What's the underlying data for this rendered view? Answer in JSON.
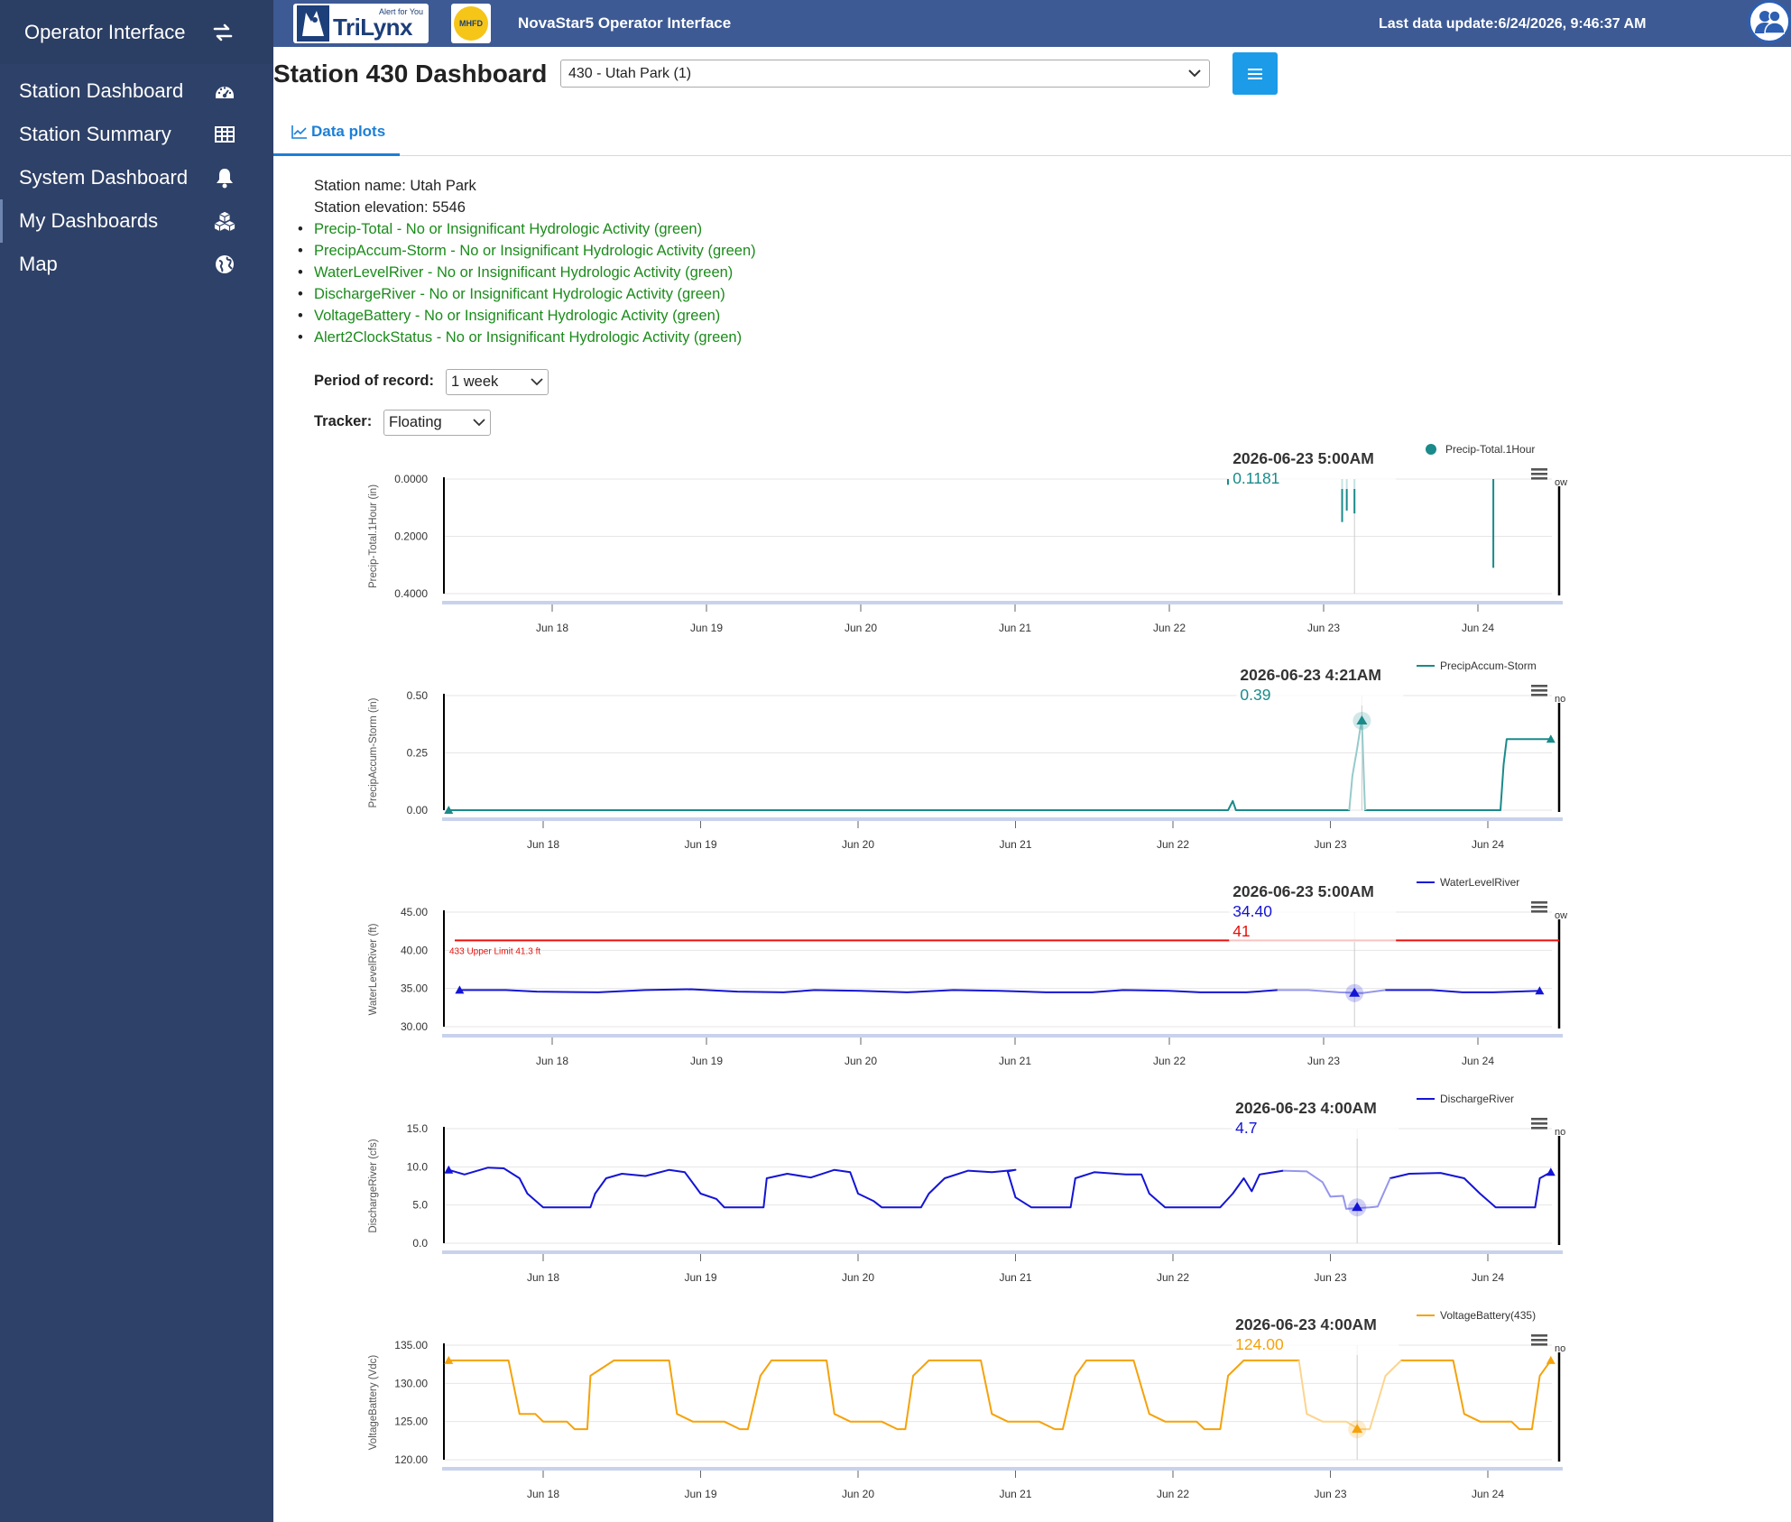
{
  "sidebar": {
    "brand": "Operator Interface",
    "items": [
      {
        "label": "Station Dashboard"
      },
      {
        "label": "Station Summary"
      },
      {
        "label": "System Dashboard"
      },
      {
        "label": "My Dashboards"
      },
      {
        "label": "Map"
      }
    ]
  },
  "topbar": {
    "logo_text": "TriLynx",
    "logo_tagline": "Alert for You",
    "logo2_text": "MHFD",
    "app_title": "NovaStar5 Operator Interface",
    "last_update": "Last data update:6/24/2026, 9:46:37 AM"
  },
  "header": {
    "title": "Station 430 Dashboard",
    "station_select": "430 - Utah Park (1)"
  },
  "tabs": [
    {
      "label": "Data plots"
    }
  ],
  "station": {
    "name_line": "Station name: Utah Park",
    "elevation_line": "Station elevation: 5546",
    "status": [
      "Precip-Total - No or Insignificant Hydrologic Activity (green)",
      "PrecipAccum-Storm - No or Insignificant Hydrologic Activity (green)",
      "WaterLevelRiver - No or Insignificant Hydrologic Activity (green)",
      "DischargeRiver - No or Insignificant Hydrologic Activity (green)",
      "VoltageBattery - No or Insignificant Hydrologic Activity (green)",
      "Alert2ClockStatus - No or Insignificant Hydrologic Activity (green)"
    ]
  },
  "controls": {
    "period_label": "Period of record:",
    "period_value": "1 week",
    "tracker_label": "Tracker:",
    "tracker_value": "Floating"
  },
  "colors": {
    "teal": "#1a8a8a",
    "blue": "#1414d6",
    "orange": "#f5a20a",
    "red": "#e8100a",
    "sidebar": "#2e4168",
    "topbar": "#3d5a94"
  },
  "chart_data": [
    {
      "type": "line",
      "style": "needle",
      "legend": "Precip-Total.1Hour",
      "ylabel": "Precip-Total.1Hour (in)",
      "y_reversed": true,
      "y_ticks": [
        "0.0000",
        "0.2000",
        "0.4000"
      ],
      "ylim": [
        0,
        0.4
      ],
      "x_ticks": [
        "Jun 18",
        "Jun 19",
        "Jun 20",
        "Jun 21",
        "Jun 22",
        "Jun 23",
        "Jun 24"
      ],
      "x_range_days": [
        17.3,
        24.4
      ],
      "series": [
        {
          "color": "#1a8a8a",
          "points": [
            [
              22.38,
              0.02
            ],
            [
              23.12,
              0.15
            ],
            [
              23.15,
              0.11
            ],
            [
              23.2,
              0.12
            ],
            [
              24.1,
              0.31
            ]
          ]
        }
      ],
      "tooltip": {
        "title": "2026-06-23 5:00AM",
        "values": [
          {
            "text": "0.1181",
            "color": "#1a8a8a"
          }
        ]
      },
      "crosshair_day": 23.2,
      "edge_text": "ow"
    },
    {
      "type": "line",
      "legend": "PrecipAccum-Storm",
      "ylabel": "PrecipAccum-Storm (in)",
      "y_ticks": [
        "0.00",
        "0.25",
        "0.50"
      ],
      "ylim": [
        0,
        0.5
      ],
      "x_ticks": [
        "Jun 18",
        "Jun 19",
        "Jun 20",
        "Jun 21",
        "Jun 22",
        "Jun 23",
        "Jun 24"
      ],
      "x_range_days": [
        17.38,
        24.4
      ],
      "series": [
        {
          "color": "#1a8a8a",
          "points": [
            [
              17.4,
              0
            ],
            [
              22.35,
              0
            ],
            [
              22.38,
              0.04
            ],
            [
              22.4,
              0
            ],
            [
              23.12,
              0
            ],
            [
              23.14,
              0.15
            ],
            [
              23.17,
              0.27
            ],
            [
              23.19,
              0.36
            ],
            [
              23.2,
              0.39
            ],
            [
              23.22,
              0
            ],
            [
              24.08,
              0
            ],
            [
              24.1,
              0.2
            ],
            [
              24.12,
              0.31
            ],
            [
              24.4,
              0.31
            ]
          ]
        }
      ],
      "tooltip": {
        "title": "2026-06-23 4:21AM",
        "values": [
          {
            "text": "0.39",
            "color": "#1a8a8a"
          }
        ]
      },
      "crosshair_day": 23.2,
      "marker_day": 23.2,
      "marker_value": 0.39,
      "edge_text": "no"
    },
    {
      "type": "line",
      "legend": "WaterLevelRiver",
      "ylabel": "WaterLevelRiver (ft)",
      "y_ticks": [
        "30.00",
        "35.00",
        "40.00",
        "45.00"
      ],
      "ylim": [
        30,
        45
      ],
      "x_ticks": [
        "Jun 18",
        "Jun 19",
        "Jun 20",
        "Jun 21",
        "Jun 22",
        "Jun 23",
        "Jun 24"
      ],
      "x_range_days": [
        17.3,
        24.4
      ],
      "plotline": {
        "value": 41.3,
        "label": "433 Upper Limit 41.3 ft",
        "color": "#e8100a"
      },
      "series": [
        {
          "color": "#1414d6",
          "points": [
            [
              17.4,
              34.8
            ],
            [
              17.7,
              34.8
            ],
            [
              17.9,
              34.6
            ],
            [
              18.3,
              34.5
            ],
            [
              18.6,
              34.8
            ],
            [
              18.9,
              34.9
            ],
            [
              19.2,
              34.6
            ],
            [
              19.5,
              34.5
            ],
            [
              19.7,
              34.8
            ],
            [
              20.0,
              34.7
            ],
            [
              20.3,
              34.5
            ],
            [
              20.6,
              34.8
            ],
            [
              20.9,
              34.7
            ],
            [
              21.2,
              34.5
            ],
            [
              21.5,
              34.5
            ],
            [
              21.7,
              34.8
            ],
            [
              22.0,
              34.7
            ],
            [
              22.2,
              34.5
            ],
            [
              22.5,
              34.5
            ],
            [
              22.7,
              34.8
            ],
            [
              22.9,
              34.8
            ],
            [
              23.1,
              34.5
            ],
            [
              23.25,
              34.4
            ],
            [
              23.4,
              34.8
            ],
            [
              23.7,
              34.8
            ],
            [
              23.9,
              34.5
            ],
            [
              24.1,
              34.5
            ],
            [
              24.4,
              34.7
            ]
          ]
        }
      ],
      "tooltip": {
        "title": "2026-06-23 5:00AM",
        "values": [
          {
            "text": "34.40",
            "color": "#1414d6"
          },
          {
            "text": "41",
            "color": "#e8100a"
          }
        ]
      },
      "crosshair_day": 23.2,
      "marker_day": 23.2,
      "marker_value": 34.4,
      "edge_text": "ow"
    },
    {
      "type": "line",
      "legend": "DischargeRiver",
      "ylabel": "DischargeRiver (cfs)",
      "y_ticks": [
        "0.0",
        "5.0",
        "10.0",
        "15.0"
      ],
      "ylim": [
        0,
        15
      ],
      "x_ticks": [
        "Jun 18",
        "Jun 19",
        "Jun 20",
        "Jun 21",
        "Jun 22",
        "Jun 23",
        "Jun 24"
      ],
      "x_range_days": [
        17.38,
        24.4
      ],
      "series": [
        {
          "color": "#1414d6",
          "points": [
            [
              17.4,
              9.6
            ],
            [
              17.5,
              9.0
            ],
            [
              17.65,
              9.9
            ],
            [
              17.75,
              9.8
            ],
            [
              17.85,
              8.5
            ],
            [
              17.9,
              6.5
            ],
            [
              18.0,
              4.7
            ],
            [
              18.3,
              4.7
            ],
            [
              18.33,
              6.5
            ],
            [
              18.4,
              8.5
            ],
            [
              18.5,
              9.1
            ],
            [
              18.65,
              8.8
            ],
            [
              18.8,
              9.6
            ],
            [
              18.9,
              9.3
            ],
            [
              19.0,
              6.5
            ],
            [
              19.1,
              5.8
            ],
            [
              19.15,
              4.7
            ],
            [
              19.4,
              4.7
            ],
            [
              19.42,
              8.5
            ],
            [
              19.55,
              9.1
            ],
            [
              19.7,
              8.6
            ],
            [
              19.85,
              9.6
            ],
            [
              19.95,
              9.3
            ],
            [
              20.0,
              6.5
            ],
            [
              20.1,
              5.5
            ],
            [
              20.15,
              4.7
            ],
            [
              20.4,
              4.7
            ],
            [
              20.45,
              6.5
            ],
            [
              20.55,
              8.5
            ],
            [
              20.7,
              9.5
            ],
            [
              20.85,
              9.3
            ],
            [
              21.0,
              9.6
            ],
            [
              20.95,
              9.4
            ],
            [
              21.0,
              6.0
            ],
            [
              21.1,
              4.7
            ],
            [
              21.35,
              4.7
            ],
            [
              21.38,
              8.5
            ],
            [
              21.5,
              9.3
            ],
            [
              21.7,
              9.0
            ],
            [
              21.8,
              9.0
            ],
            [
              21.85,
              6.5
            ],
            [
              21.95,
              4.7
            ],
            [
              22.3,
              4.7
            ],
            [
              22.38,
              6.5
            ],
            [
              22.45,
              8.5
            ],
            [
              22.5,
              6.8
            ],
            [
              22.55,
              9.0
            ],
            [
              22.7,
              9.5
            ],
            [
              22.85,
              9.4
            ],
            [
              22.95,
              8.0
            ],
            [
              23.0,
              6.1
            ],
            [
              23.08,
              6.2
            ],
            [
              23.1,
              4.5
            ],
            [
              23.25,
              4.7
            ],
            [
              23.3,
              4.8
            ],
            [
              23.38,
              8.5
            ],
            [
              23.5,
              9.1
            ],
            [
              23.7,
              9.2
            ],
            [
              23.85,
              8.5
            ],
            [
              23.95,
              6.5
            ],
            [
              24.05,
              4.7
            ],
            [
              24.3,
              4.7
            ],
            [
              24.33,
              8.5
            ],
            [
              24.4,
              9.3
            ]
          ]
        }
      ],
      "tooltip": {
        "title": "2026-06-23 4:00AM",
        "values": [
          {
            "text": "4.7",
            "color": "#1414d6"
          }
        ]
      },
      "crosshair_day": 23.17,
      "marker_day": 23.17,
      "marker_value": 4.7,
      "edge_text": "no"
    },
    {
      "type": "line",
      "legend": "VoltageBattery(435)",
      "ylabel": "VoltageBattery (Vdc)",
      "y_ticks": [
        "120.00",
        "125.00",
        "130.00",
        "135.00"
      ],
      "ylim": [
        120,
        135
      ],
      "x_ticks": [
        "Jun 18",
        "Jun 19",
        "Jun 20",
        "Jun 21",
        "Jun 22",
        "Jun 23",
        "Jun 24"
      ],
      "x_range_days": [
        17.38,
        24.4
      ],
      "series": [
        {
          "color": "#f5a20a",
          "points": [
            [
              17.4,
              133
            ],
            [
              17.78,
              133
            ],
            [
              17.85,
              126
            ],
            [
              17.95,
              126
            ],
            [
              18.0,
              125
            ],
            [
              18.15,
              125
            ],
            [
              18.2,
              124
            ],
            [
              18.28,
              124
            ],
            [
              18.3,
              131
            ],
            [
              18.45,
              133
            ],
            [
              18.8,
              133
            ],
            [
              18.85,
              126
            ],
            [
              18.95,
              125
            ],
            [
              19.15,
              125
            ],
            [
              19.25,
              124
            ],
            [
              19.3,
              124
            ],
            [
              19.38,
              131
            ],
            [
              19.45,
              133
            ],
            [
              19.8,
              133
            ],
            [
              19.85,
              126
            ],
            [
              19.95,
              125
            ],
            [
              20.15,
              125
            ],
            [
              20.25,
              124
            ],
            [
              20.3,
              124
            ],
            [
              20.35,
              131
            ],
            [
              20.45,
              133
            ],
            [
              20.78,
              133
            ],
            [
              20.85,
              126
            ],
            [
              20.95,
              125
            ],
            [
              21.15,
              125
            ],
            [
              21.25,
              124
            ],
            [
              21.3,
              124
            ],
            [
              21.38,
              131
            ],
            [
              21.45,
              133
            ],
            [
              21.75,
              133
            ],
            [
              21.85,
              126
            ],
            [
              21.95,
              125
            ],
            [
              22.15,
              125
            ],
            [
              22.2,
              124
            ],
            [
              22.3,
              124
            ],
            [
              22.35,
              131
            ],
            [
              22.45,
              133
            ],
            [
              22.8,
              133
            ],
            [
              22.85,
              126
            ],
            [
              22.95,
              125
            ],
            [
              23.1,
              125
            ],
            [
              23.18,
              124
            ],
            [
              23.25,
              124
            ],
            [
              23.35,
              131
            ],
            [
              23.45,
              133
            ],
            [
              23.78,
              133
            ],
            [
              23.85,
              126
            ],
            [
              23.95,
              125
            ],
            [
              24.15,
              125
            ],
            [
              24.2,
              124
            ],
            [
              24.28,
              124
            ],
            [
              24.33,
              131
            ],
            [
              24.4,
              133
            ]
          ]
        }
      ],
      "tooltip": {
        "title": "2026-06-23 4:00AM",
        "values": [
          {
            "text": "124.00",
            "color": "#f5a20a"
          }
        ]
      },
      "crosshair_day": 23.17,
      "marker_day": 23.17,
      "marker_value": 124,
      "edge_text": "no"
    }
  ]
}
